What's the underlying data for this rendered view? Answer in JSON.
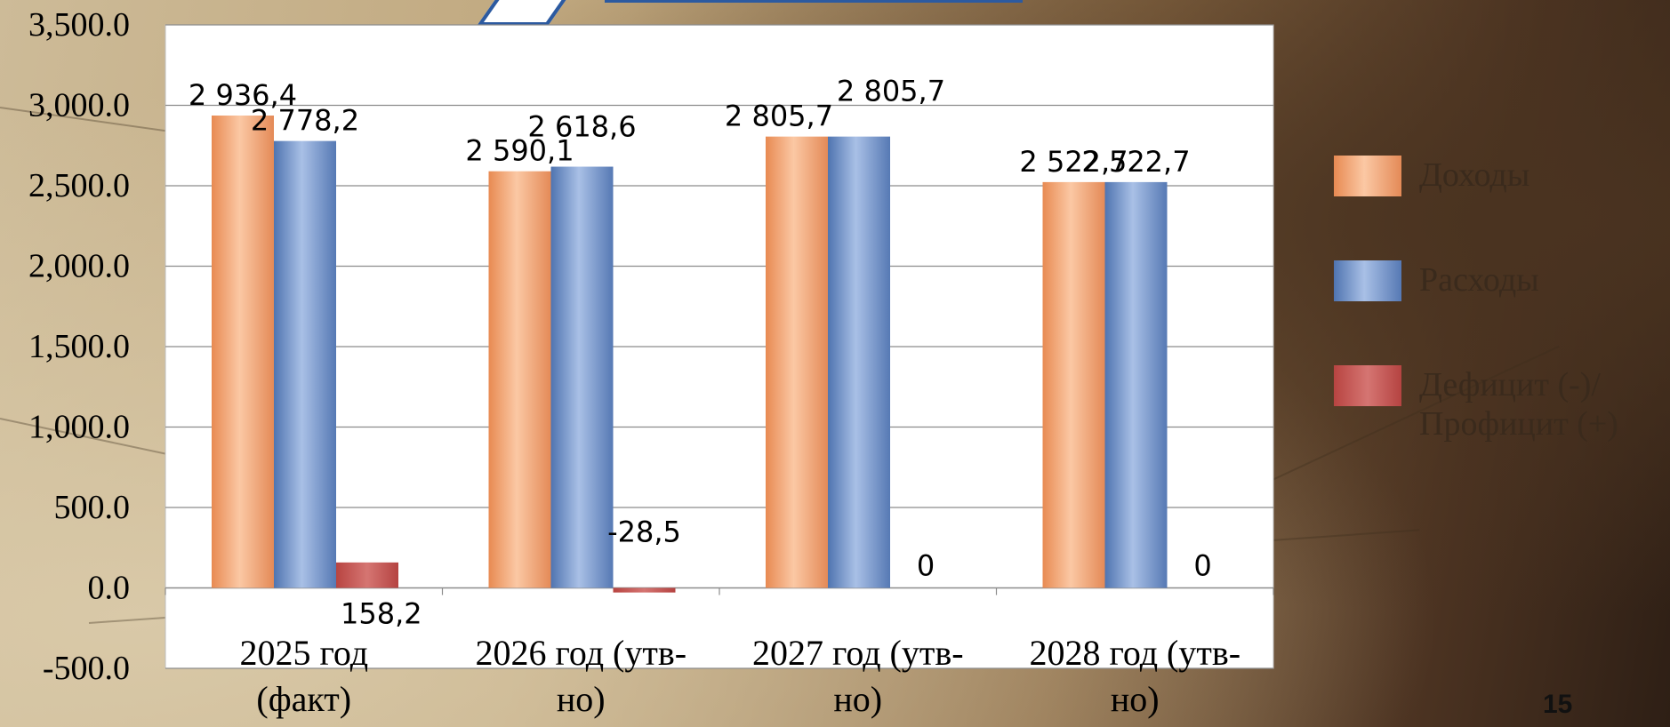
{
  "slide": {
    "page_number": "15"
  },
  "colors": {
    "income": "#f2a275",
    "expense": "#6f8fc6",
    "deficit": "#c0504d",
    "plot_bg": "#ffffff",
    "grid": "#8c8c8c",
    "text": "#000000"
  },
  "chart_data": {
    "type": "bar",
    "categories": [
      "2025 год (факт)",
      "2026 год (утв-но)",
      "2027 год (утв-но)",
      "2028 год (утв-но)"
    ],
    "category_lines": [
      [
        "2025 год",
        "(факт)"
      ],
      [
        "2026 год (утв-",
        "но)"
      ],
      [
        "2027 год (утв-",
        "но)"
      ],
      [
        "2028 год (утв-",
        "но)"
      ]
    ],
    "series": [
      {
        "name": "Доходы",
        "values": [
          2936.4,
          2590.1,
          2805.7,
          2522.7
        ],
        "labels": [
          "2 936,4",
          "2 590,1",
          "2 805,7",
          "2 522,7"
        ]
      },
      {
        "name": "Расходы",
        "values": [
          2778.2,
          2618.6,
          2805.7,
          2522.7
        ],
        "labels": [
          "2 778,2",
          "2 618,6",
          "2 805,7",
          "2 522,7"
        ]
      },
      {
        "name": "Дефицит (-)/ Профицит (+)",
        "legend_lines": [
          "Дефицит (-)/",
          "Профицит (+)"
        ],
        "values": [
          158.2,
          -28.5,
          0,
          0
        ],
        "labels": [
          "158,2",
          "-28,5",
          "0",
          "0"
        ]
      }
    ],
    "ylim": [
      -500,
      3500
    ],
    "yticks": [
      -500,
      0,
      500,
      1000,
      1500,
      2000,
      2500,
      3000,
      3500
    ],
    "ytick_labels": [
      "-500.0",
      "0.0",
      "500.0",
      "1,000.0",
      "1,500.0",
      "2,000.0",
      "2,500.0",
      "3,000.0",
      "3,500.0"
    ],
    "grid": true,
    "legend": "right"
  }
}
